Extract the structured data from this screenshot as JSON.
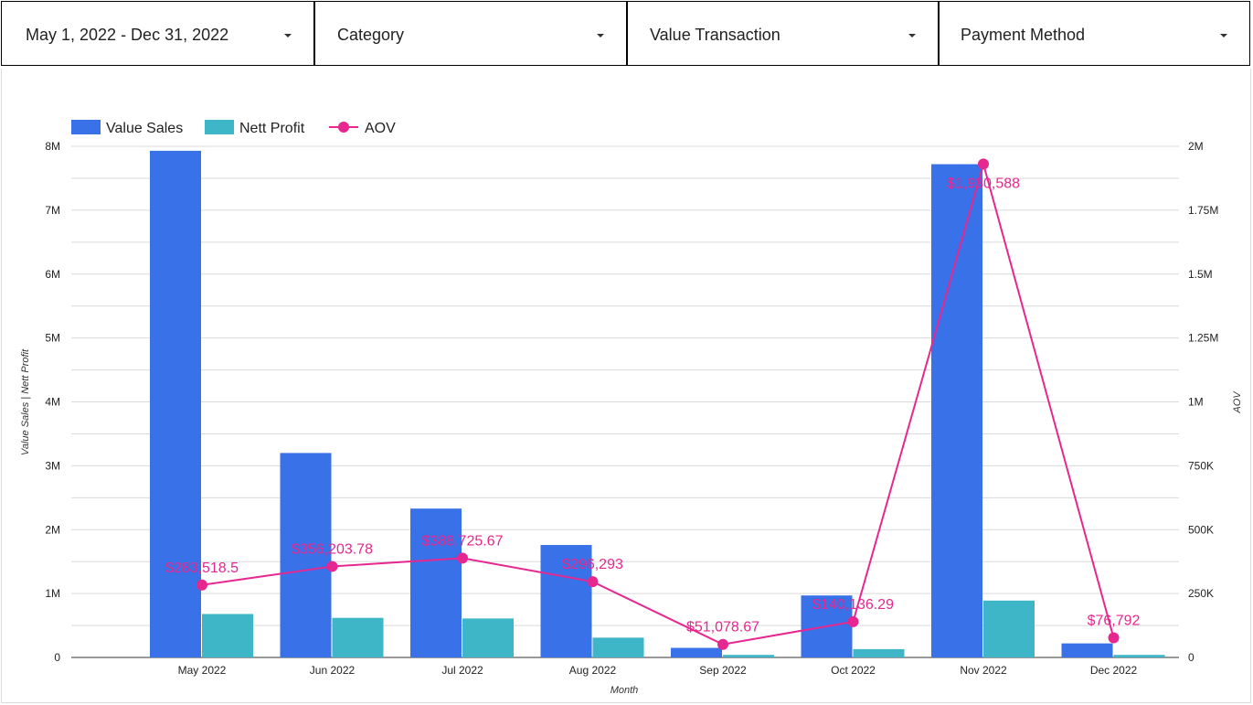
{
  "filters": {
    "date_range": "May 1, 2022 - Dec 31, 2022",
    "category": "Category",
    "value_transaction": "Value Transaction",
    "payment_method": "Payment Method"
  },
  "colors": {
    "value_sales": "#3871e8",
    "nett_profit": "#3eb6c8",
    "aov": "#e6278f",
    "grid": "#d9d9d9"
  },
  "chart_data": {
    "type": "bar",
    "categories": [
      "May 2022",
      "Jun 2022",
      "Jul 2022",
      "Aug 2022",
      "Sep 2022",
      "Oct 2022",
      "Nov 2022",
      "Dec 2022"
    ],
    "series": [
      {
        "name": "Value Sales",
        "type": "bar",
        "axis": "left",
        "values": [
          7930000,
          3200000,
          2330000,
          1760000,
          150000,
          970000,
          7720000,
          220000
        ]
      },
      {
        "name": "Nett Profit",
        "type": "bar",
        "axis": "left",
        "values": [
          680000,
          620000,
          610000,
          310000,
          40000,
          130000,
          890000,
          40000
        ]
      },
      {
        "name": "AOV",
        "type": "line",
        "axis": "right",
        "values": [
          283518.5,
          356203.78,
          388725.67,
          296293,
          51078.67,
          140136.29,
          1930588,
          76792
        ],
        "labels": [
          "$283,518.5",
          "$356,203.78",
          "$388,725.67",
          "$296,293",
          "$51,078.67",
          "$140,136.29",
          "$1,930,588",
          "$76,792"
        ]
      }
    ],
    "xlabel": "Month",
    "ylabel": "Value Sales | Nett Profit",
    "y2label": "AOV",
    "ylim": [
      0,
      8000000
    ],
    "y2lim": [
      0,
      2000000
    ],
    "y_ticks": [
      "0",
      "1M",
      "2M",
      "3M",
      "4M",
      "5M",
      "6M",
      "7M",
      "8M"
    ],
    "y2_ticks": [
      "0",
      "250K",
      "500K",
      "750K",
      "1M",
      "1.25M",
      "1.5M",
      "1.75M",
      "2M"
    ],
    "legend": "top-left",
    "grid": true
  }
}
